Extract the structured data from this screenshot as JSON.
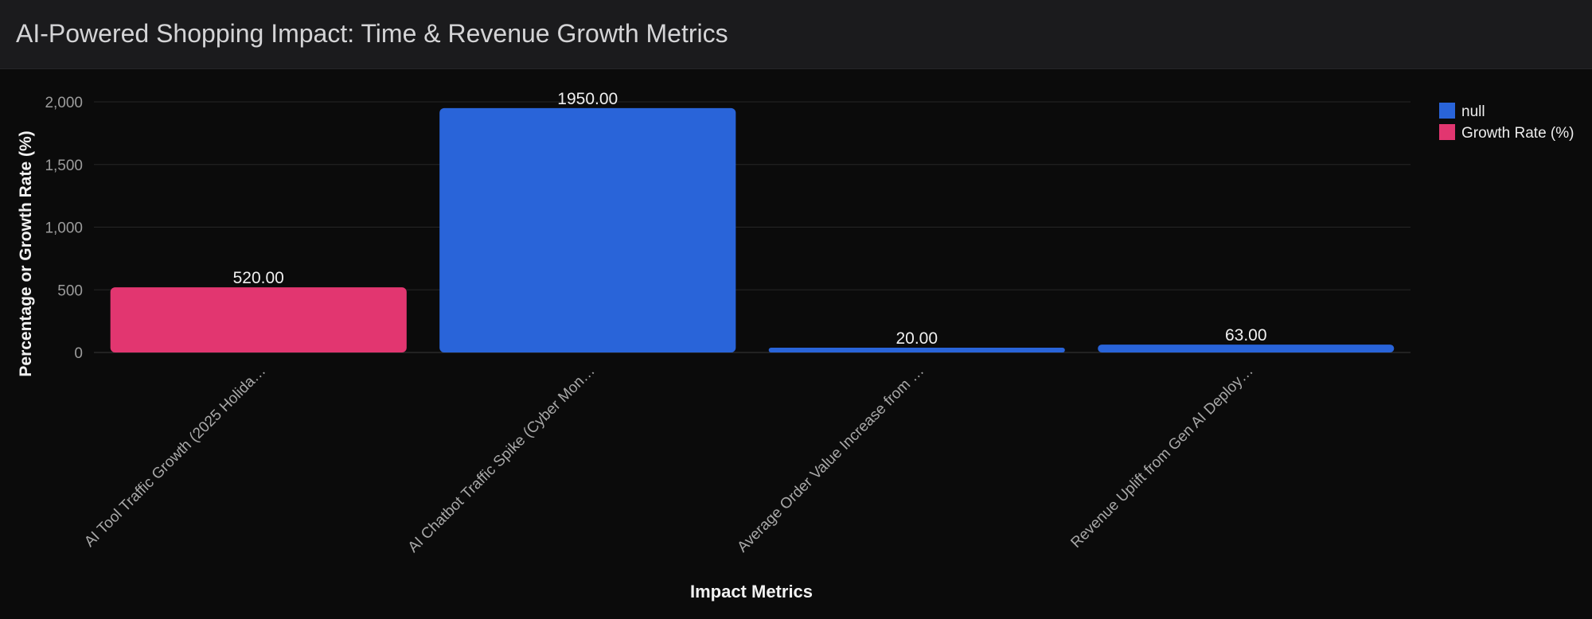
{
  "header": {
    "title": "AI-Powered Shopping Impact: Time & Revenue Growth Metrics"
  },
  "chart_data": {
    "type": "bar",
    "title": "AI-Powered Shopping Impact: Time & Revenue Growth Metrics",
    "xlabel": "Impact Metrics",
    "ylabel": "Percentage or Growth Rate (%)",
    "ylim": [
      0,
      2000
    ],
    "yticks": [
      0,
      500,
      1000,
      1500,
      2000
    ],
    "ytick_labels": [
      "0",
      "500",
      "1,000",
      "1,500",
      "2,000"
    ],
    "grid": true,
    "legend_position": "top-right",
    "categories": [
      "AI Tool Traffic Growth (2025 Holida…",
      "AI Chatbot Traffic Spike (Cyber Mon…",
      "Average Order Value Increase from …",
      "Revenue Uplift from Gen AI Deploy…"
    ],
    "series": [
      {
        "name": "null",
        "color": "#2964d9",
        "values": [
          null,
          1950,
          20,
          63
        ]
      },
      {
        "name": "Growth Rate (%)",
        "color": "#e23670",
        "values": [
          520,
          null,
          null,
          null
        ]
      }
    ],
    "data_labels": [
      "520.00",
      "1950.00",
      "20.00",
      "63.00"
    ]
  }
}
